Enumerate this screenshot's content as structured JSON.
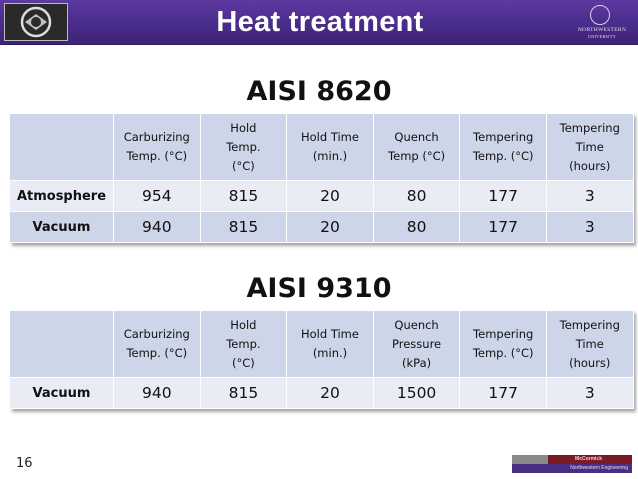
{
  "header": {
    "title": "Heat treatment",
    "logo_left": "brp-logo",
    "logo_right_line1": "NORTHWESTERN",
    "logo_right_line2": "UNIVERSITY",
    "color": "#4a2c8a"
  },
  "section1": {
    "title": "AISI 8620",
    "headers": [
      "",
      "Carburizing\nTemp. (°C)",
      "Hold\nTemp.\n(°C)",
      "Hold Time\n(min.)",
      "Quench\nTemp (°C)",
      "Tempering\nTemp.  (°C)",
      "Tempering\nTime\n(hours)"
    ],
    "rows": [
      [
        "Atmosphere",
        "954",
        "815",
        "20",
        "80",
        "177",
        "3"
      ],
      [
        "Vacuum",
        "940",
        "815",
        "20",
        "80",
        "177",
        "3"
      ]
    ]
  },
  "section2": {
    "title": "AISI 9310",
    "headers": [
      "",
      "Carburizing\nTemp. (°C)",
      "Hold\nTemp.\n(°C)",
      "Hold Time\n(min.)",
      "Quench\nPressure\n(kPa)",
      "Tempering\nTemp.  (°C)",
      "Tempering\nTime\n(hours)"
    ],
    "rows": [
      [
        "Vacuum",
        "940",
        "815",
        "20",
        "1500",
        "177",
        "3"
      ]
    ]
  },
  "footer": {
    "page_number": "16",
    "logo_line1": "McCormick",
    "logo_line2": "Northwestern Engineering"
  },
  "colors": {
    "header_cell": "#cdd5e8",
    "body_cell": "#e9ecf4",
    "alt_cell": "#cdd5e8"
  }
}
